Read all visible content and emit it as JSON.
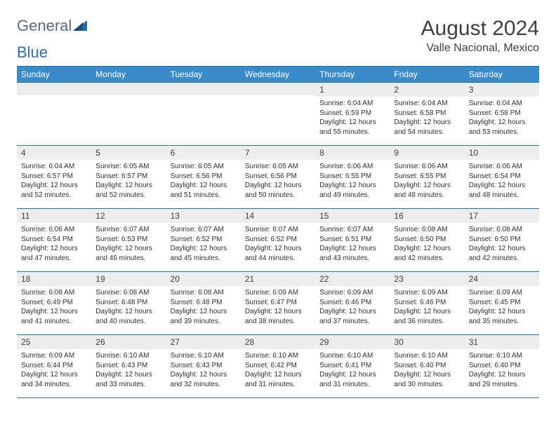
{
  "logo": {
    "word1": "General",
    "word2": "Blue"
  },
  "title": "August 2024",
  "location": "Valle Nacional, Mexico",
  "colors": {
    "header_bg": "#3b8bc9",
    "border": "#2a6ea3",
    "daynum_bg": "#eceded",
    "text": "#404040",
    "logo_gray": "#5a6b7a",
    "logo_blue": "#2f6aa8"
  },
  "day_headers": [
    "Sunday",
    "Monday",
    "Tuesday",
    "Wednesday",
    "Thursday",
    "Friday",
    "Saturday"
  ],
  "weeks": [
    [
      {
        "num": "",
        "sunrise": "",
        "sunset": "",
        "daylight": ""
      },
      {
        "num": "",
        "sunrise": "",
        "sunset": "",
        "daylight": ""
      },
      {
        "num": "",
        "sunrise": "",
        "sunset": "",
        "daylight": ""
      },
      {
        "num": "",
        "sunrise": "",
        "sunset": "",
        "daylight": ""
      },
      {
        "num": "1",
        "sunrise": "Sunrise: 6:04 AM",
        "sunset": "Sunset: 6:59 PM",
        "daylight": "Daylight: 12 hours and 55 minutes."
      },
      {
        "num": "2",
        "sunrise": "Sunrise: 6:04 AM",
        "sunset": "Sunset: 6:58 PM",
        "daylight": "Daylight: 12 hours and 54 minutes."
      },
      {
        "num": "3",
        "sunrise": "Sunrise: 6:04 AM",
        "sunset": "Sunset: 6:58 PM",
        "daylight": "Daylight: 12 hours and 53 minutes."
      }
    ],
    [
      {
        "num": "4",
        "sunrise": "Sunrise: 6:04 AM",
        "sunset": "Sunset: 6:57 PM",
        "daylight": "Daylight: 12 hours and 52 minutes."
      },
      {
        "num": "5",
        "sunrise": "Sunrise: 6:05 AM",
        "sunset": "Sunset: 6:57 PM",
        "daylight": "Daylight: 12 hours and 52 minutes."
      },
      {
        "num": "6",
        "sunrise": "Sunrise: 6:05 AM",
        "sunset": "Sunset: 6:56 PM",
        "daylight": "Daylight: 12 hours and 51 minutes."
      },
      {
        "num": "7",
        "sunrise": "Sunrise: 6:05 AM",
        "sunset": "Sunset: 6:56 PM",
        "daylight": "Daylight: 12 hours and 50 minutes."
      },
      {
        "num": "8",
        "sunrise": "Sunrise: 6:06 AM",
        "sunset": "Sunset: 6:55 PM",
        "daylight": "Daylight: 12 hours and 49 minutes."
      },
      {
        "num": "9",
        "sunrise": "Sunrise: 6:06 AM",
        "sunset": "Sunset: 6:55 PM",
        "daylight": "Daylight: 12 hours and 48 minutes."
      },
      {
        "num": "10",
        "sunrise": "Sunrise: 6:06 AM",
        "sunset": "Sunset: 6:54 PM",
        "daylight": "Daylight: 12 hours and 48 minutes."
      }
    ],
    [
      {
        "num": "11",
        "sunrise": "Sunrise: 6:06 AM",
        "sunset": "Sunset: 6:54 PM",
        "daylight": "Daylight: 12 hours and 47 minutes."
      },
      {
        "num": "12",
        "sunrise": "Sunrise: 6:07 AM",
        "sunset": "Sunset: 6:53 PM",
        "daylight": "Daylight: 12 hours and 46 minutes."
      },
      {
        "num": "13",
        "sunrise": "Sunrise: 6:07 AM",
        "sunset": "Sunset: 6:52 PM",
        "daylight": "Daylight: 12 hours and 45 minutes."
      },
      {
        "num": "14",
        "sunrise": "Sunrise: 6:07 AM",
        "sunset": "Sunset: 6:52 PM",
        "daylight": "Daylight: 12 hours and 44 minutes."
      },
      {
        "num": "15",
        "sunrise": "Sunrise: 6:07 AM",
        "sunset": "Sunset: 6:51 PM",
        "daylight": "Daylight: 12 hours and 43 minutes."
      },
      {
        "num": "16",
        "sunrise": "Sunrise: 6:08 AM",
        "sunset": "Sunset: 6:50 PM",
        "daylight": "Daylight: 12 hours and 42 minutes."
      },
      {
        "num": "17",
        "sunrise": "Sunrise: 6:08 AM",
        "sunset": "Sunset: 6:50 PM",
        "daylight": "Daylight: 12 hours and 42 minutes."
      }
    ],
    [
      {
        "num": "18",
        "sunrise": "Sunrise: 6:08 AM",
        "sunset": "Sunset: 6:49 PM",
        "daylight": "Daylight: 12 hours and 41 minutes."
      },
      {
        "num": "19",
        "sunrise": "Sunrise: 6:08 AM",
        "sunset": "Sunset: 6:48 PM",
        "daylight": "Daylight: 12 hours and 40 minutes."
      },
      {
        "num": "20",
        "sunrise": "Sunrise: 6:08 AM",
        "sunset": "Sunset: 6:48 PM",
        "daylight": "Daylight: 12 hours and 39 minutes."
      },
      {
        "num": "21",
        "sunrise": "Sunrise: 6:09 AM",
        "sunset": "Sunset: 6:47 PM",
        "daylight": "Daylight: 12 hours and 38 minutes."
      },
      {
        "num": "22",
        "sunrise": "Sunrise: 6:09 AM",
        "sunset": "Sunset: 6:46 PM",
        "daylight": "Daylight: 12 hours and 37 minutes."
      },
      {
        "num": "23",
        "sunrise": "Sunrise: 6:09 AM",
        "sunset": "Sunset: 6:46 PM",
        "daylight": "Daylight: 12 hours and 36 minutes."
      },
      {
        "num": "24",
        "sunrise": "Sunrise: 6:09 AM",
        "sunset": "Sunset: 6:45 PM",
        "daylight": "Daylight: 12 hours and 35 minutes."
      }
    ],
    [
      {
        "num": "25",
        "sunrise": "Sunrise: 6:09 AM",
        "sunset": "Sunset: 6:44 PM",
        "daylight": "Daylight: 12 hours and 34 minutes."
      },
      {
        "num": "26",
        "sunrise": "Sunrise: 6:10 AM",
        "sunset": "Sunset: 6:43 PM",
        "daylight": "Daylight: 12 hours and 33 minutes."
      },
      {
        "num": "27",
        "sunrise": "Sunrise: 6:10 AM",
        "sunset": "Sunset: 6:43 PM",
        "daylight": "Daylight: 12 hours and 32 minutes."
      },
      {
        "num": "28",
        "sunrise": "Sunrise: 6:10 AM",
        "sunset": "Sunset: 6:42 PM",
        "daylight": "Daylight: 12 hours and 31 minutes."
      },
      {
        "num": "29",
        "sunrise": "Sunrise: 6:10 AM",
        "sunset": "Sunset: 6:41 PM",
        "daylight": "Daylight: 12 hours and 31 minutes."
      },
      {
        "num": "30",
        "sunrise": "Sunrise: 6:10 AM",
        "sunset": "Sunset: 6:40 PM",
        "daylight": "Daylight: 12 hours and 30 minutes."
      },
      {
        "num": "31",
        "sunrise": "Sunrise: 6:10 AM",
        "sunset": "Sunset: 6:40 PM",
        "daylight": "Daylight: 12 hours and 29 minutes."
      }
    ]
  ]
}
